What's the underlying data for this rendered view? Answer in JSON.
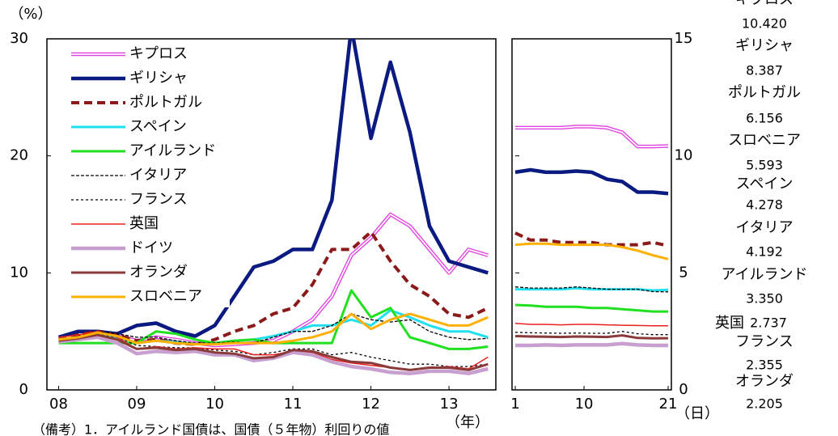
{
  "chart_data": [
    {
      "type": "line",
      "y_unit": "（%）",
      "x_unit": "（年）",
      "xlim": [
        2007.85,
        2013.6
      ],
      "xticks": [
        {
          "value": 2008,
          "label": "08"
        },
        {
          "value": 2009,
          "label": "09"
        },
        {
          "value": 2010,
          "label": "10"
        },
        {
          "value": 2011,
          "label": "11"
        },
        {
          "value": 2012,
          "label": "12"
        },
        {
          "value": 2013,
          "label": "13"
        }
      ],
      "ylim": [
        0,
        30
      ],
      "yticks": [
        0,
        10,
        20,
        30
      ],
      "x": [
        2008.0,
        2008.25,
        2008.5,
        2008.75,
        2009.0,
        2009.25,
        2009.5,
        2009.75,
        2010.0,
        2010.25,
        2010.5,
        2010.75,
        2011.0,
        2011.25,
        2011.5,
        2011.75,
        2012.0,
        2012.25,
        2012.5,
        2012.75,
        2013.0,
        2013.25,
        2013.5
      ],
      "series": [
        {
          "name": "キプロス",
          "color": "#e040e0",
          "style": "double",
          "values": [
            4.5,
            4.6,
            4.8,
            4.6,
            4.2,
            4.5,
            4.3,
            4.0,
            3.8,
            3.9,
            4.0,
            4.2,
            5.0,
            6.0,
            8.0,
            11.5,
            13.0,
            15.0,
            14.0,
            12.0,
            10.0,
            12.0,
            11.5
          ]
        },
        {
          "name": "ギリシャ",
          "color": "#0a1a80",
          "style": "thick",
          "values": [
            4.5,
            5.0,
            5.0,
            4.8,
            5.5,
            5.7,
            5.0,
            4.6,
            5.5,
            8.0,
            10.5,
            11.0,
            12.0,
            12.0,
            16.2,
            31.0,
            21.5,
            28.0,
            22.0,
            14.0,
            11.0,
            10.5,
            10.0
          ]
        },
        {
          "name": "ポルトガル",
          "color": "#8b1a1a",
          "style": "thickdash",
          "values": [
            4.3,
            4.7,
            5.0,
            4.7,
            4.2,
            4.3,
            4.0,
            3.9,
            4.3,
            5.0,
            5.5,
            6.5,
            7.0,
            9.0,
            12.0,
            12.0,
            13.5,
            11.0,
            9.0,
            8.0,
            6.5,
            6.2,
            7.0
          ]
        },
        {
          "name": "スペイン",
          "color": "#20e0f0",
          "style": "medium",
          "values": [
            4.3,
            4.5,
            4.8,
            4.5,
            4.0,
            4.2,
            4.1,
            3.9,
            4.0,
            4.2,
            4.3,
            4.6,
            5.0,
            5.5,
            5.5,
            6.0,
            5.5,
            6.8,
            6.2,
            5.5,
            5.0,
            5.0,
            4.5
          ]
        },
        {
          "name": "アイルランド",
          "color": "#20e020",
          "style": "medium",
          "values": [
            4.0,
            4.0,
            4.0,
            4.0,
            4.0,
            5.0,
            4.8,
            4.3,
            4.0,
            4.2,
            4.3,
            4.0,
            4.0,
            4.0,
            4.0,
            8.5,
            6.2,
            7.0,
            4.5,
            4.0,
            3.5,
            3.5,
            3.7
          ]
        },
        {
          "name": "イタリア",
          "color": "#000000",
          "style": "dash",
          "values": [
            4.3,
            4.6,
            5.0,
            4.8,
            4.5,
            4.5,
            4.2,
            4.0,
            4.0,
            4.1,
            4.0,
            4.5,
            5.0,
            5.0,
            5.5,
            6.5,
            6.0,
            5.8,
            6.0,
            5.0,
            4.5,
            4.3,
            4.4
          ]
        },
        {
          "name": "フランス",
          "color": "#000000",
          "style": "dash2",
          "values": [
            4.2,
            4.4,
            4.8,
            4.5,
            3.8,
            3.7,
            3.6,
            3.6,
            3.4,
            3.3,
            3.0,
            3.2,
            3.5,
            3.5,
            3.0,
            3.2,
            2.8,
            2.5,
            2.2,
            2.2,
            2.0,
            2.0,
            2.2
          ]
        },
        {
          "name": "英国",
          "color": "#e82020",
          "style": "thin",
          "values": [
            4.5,
            4.7,
            5.0,
            4.5,
            3.5,
            3.7,
            3.5,
            3.6,
            3.5,
            3.5,
            3.0,
            3.0,
            3.3,
            3.2,
            2.6,
            2.3,
            2.1,
            1.9,
            1.7,
            1.9,
            2.0,
            1.8,
            2.8
          ]
        },
        {
          "name": "ドイツ",
          "color": "#c8a0d0",
          "style": "thick",
          "values": [
            4.1,
            4.3,
            4.5,
            4.0,
            3.1,
            3.3,
            3.2,
            3.3,
            3.0,
            3.0,
            2.5,
            2.7,
            3.2,
            3.0,
            2.4,
            2.0,
            1.8,
            1.5,
            1.4,
            1.6,
            1.6,
            1.4,
            1.8
          ]
        },
        {
          "name": "オランダ",
          "color": "#8b3a3a",
          "style": "medium",
          "values": [
            4.2,
            4.4,
            4.7,
            4.3,
            3.5,
            3.6,
            3.4,
            3.5,
            3.2,
            3.1,
            2.7,
            2.8,
            3.4,
            3.3,
            2.8,
            2.4,
            2.3,
            1.9,
            1.7,
            1.9,
            1.9,
            1.7,
            2.2
          ]
        },
        {
          "name": "スロベニア",
          "color": "#ffb000",
          "style": "medium",
          "values": [
            4.3,
            4.5,
            4.9,
            4.6,
            4.0,
            4.2,
            4.0,
            3.9,
            3.9,
            4.0,
            4.0,
            4.0,
            4.2,
            4.5,
            5.0,
            6.5,
            5.2,
            6.0,
            6.5,
            6.0,
            5.5,
            5.5,
            6.2
          ]
        }
      ]
    },
    {
      "type": "line",
      "x_unit": "（日）",
      "xlim": [
        1,
        21
      ],
      "xticks": [
        1,
        10,
        21
      ],
      "ylim": [
        0,
        15
      ],
      "yticks": [
        0,
        5,
        10,
        15
      ],
      "x": [
        1,
        3,
        5,
        7,
        9,
        11,
        13,
        15,
        17,
        19,
        21
      ],
      "series": [
        {
          "color": "#e040e0",
          "style": "double",
          "values": [
            11.2,
            11.2,
            11.2,
            11.2,
            11.25,
            11.25,
            11.2,
            11.0,
            10.4,
            10.4,
            10.42
          ]
        },
        {
          "color": "#0a1a80",
          "style": "thick",
          "values": [
            9.3,
            9.4,
            9.3,
            9.3,
            9.35,
            9.3,
            9.0,
            8.9,
            8.45,
            8.45,
            8.39
          ]
        },
        {
          "color": "#8b1a1a",
          "style": "thickdash",
          "values": [
            6.7,
            6.4,
            6.4,
            6.3,
            6.3,
            6.3,
            6.2,
            6.2,
            6.2,
            6.3,
            6.16
          ]
        },
        {
          "color": "#ffb000",
          "style": "medium",
          "values": [
            6.2,
            6.25,
            6.25,
            6.2,
            6.2,
            6.2,
            6.2,
            6.1,
            5.95,
            5.75,
            5.59
          ]
        },
        {
          "color": "#20e0f0",
          "style": "medium",
          "values": [
            4.3,
            4.3,
            4.3,
            4.3,
            4.35,
            4.3,
            4.3,
            4.3,
            4.3,
            4.25,
            4.28
          ]
        },
        {
          "color": "#000000",
          "style": "dash",
          "values": [
            4.4,
            4.35,
            4.35,
            4.35,
            4.4,
            4.35,
            4.3,
            4.3,
            4.3,
            4.2,
            4.19
          ]
        },
        {
          "color": "#20e020",
          "style": "medium",
          "values": [
            3.63,
            3.6,
            3.55,
            3.55,
            3.55,
            3.5,
            3.5,
            3.45,
            3.4,
            3.35,
            3.35
          ]
        },
        {
          "color": "#e82020",
          "style": "thin",
          "values": [
            2.84,
            2.8,
            2.8,
            2.78,
            2.8,
            2.8,
            2.78,
            2.76,
            2.75,
            2.74,
            2.74
          ]
        },
        {
          "color": "#000000",
          "style": "dash2",
          "values": [
            2.46,
            2.44,
            2.43,
            2.42,
            2.43,
            2.42,
            2.42,
            2.5,
            2.4,
            2.36,
            2.36
          ]
        },
        {
          "color": "#8b3a3a",
          "style": "medium",
          "values": [
            2.3,
            2.28,
            2.27,
            2.26,
            2.28,
            2.27,
            2.26,
            2.33,
            2.22,
            2.2,
            2.21
          ]
        },
        {
          "color": "#c8a0d0",
          "style": "thick",
          "values": [
            1.9,
            1.9,
            1.92,
            1.9,
            1.92,
            1.92,
            1.92,
            1.98,
            1.92,
            1.9,
            1.9
          ]
        }
      ],
      "end_labels": [
        {
          "name": "キプロス",
          "text": "10.420"
        },
        {
          "name": "ギリシャ",
          "text": "8.387"
        },
        {
          "name": "ポルトガル",
          "text": "6.156"
        },
        {
          "name": "スロベニア",
          "text": "5.593"
        },
        {
          "name": "スペイン",
          "text": "4.278"
        },
        {
          "name": "イタリア",
          "text": "4.192"
        },
        {
          "name": "アイルランド",
          "text": "3.350"
        },
        {
          "name": "英国",
          "text": "2.737"
        },
        {
          "name": "フランス",
          "text": "2.355"
        },
        {
          "name": "オランダ",
          "text": "2.205"
        }
      ]
    }
  ],
  "note": "（備考）1．アイルランド国債は、国債（５年物）利回りの値"
}
